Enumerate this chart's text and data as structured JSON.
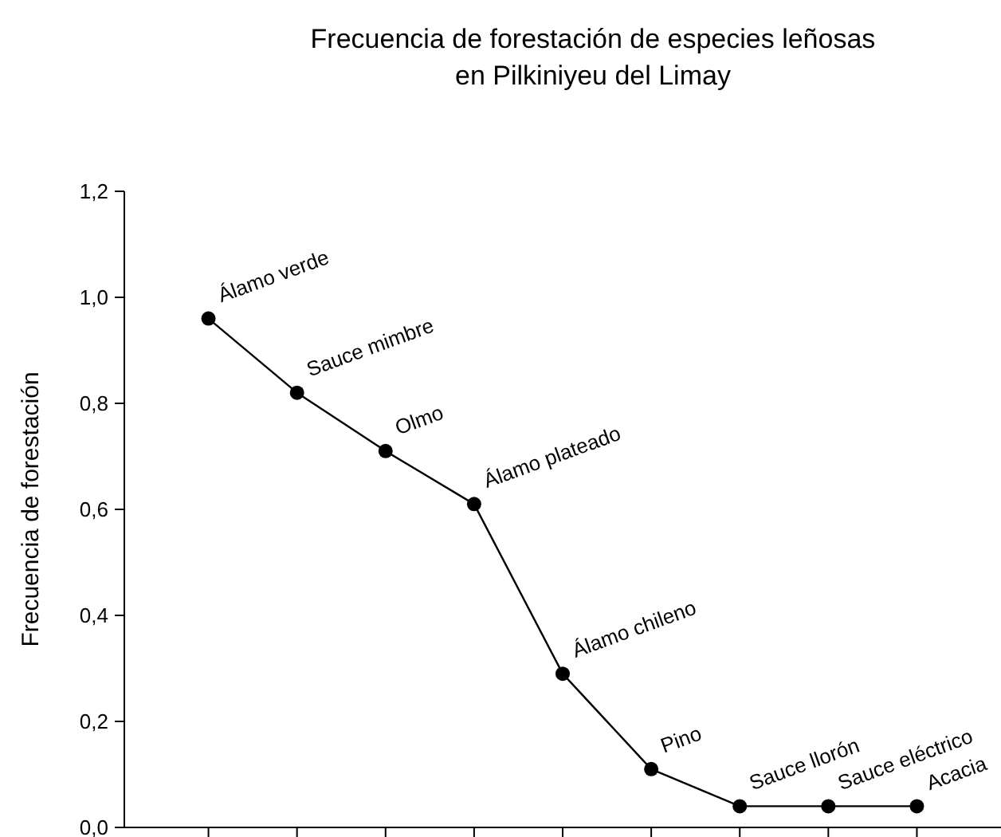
{
  "chart_data": {
    "type": "line",
    "title": "Frecuencia de forestación de especies leñosas\nen Pilkiniyeu del Limay",
    "ylabel": "Frecuencia de forestación",
    "categories": [
      null,
      null,
      null,
      null,
      null,
      null,
      null,
      null,
      null
    ],
    "series": [
      {
        "color": "#000000",
        "values": [
          0.96,
          0.82,
          0.71,
          0.61,
          0.29,
          0.11,
          0.04,
          0.04,
          0.04
        ]
      }
    ],
    "annotations": [
      "Álamo verde",
      "Sauce mimbre",
      "Olmo",
      "Álamo plateado",
      "Álamo chileno",
      "Pino",
      "Sauce llorón",
      "Sauce eléctrico",
      "Acacia"
    ],
    "ylim": [
      0,
      1.2
    ],
    "yticks": [
      {
        "value": 0,
        "label": "0,0"
      },
      {
        "value": 0.2,
        "label": "0,2"
      },
      {
        "value": 0.4,
        "label": "0,4"
      },
      {
        "value": 0.6,
        "label": "0,6"
      },
      {
        "value": 0.8,
        "label": "0,8"
      },
      {
        "value": 1,
        "label": "1,0"
      },
      {
        "value": 1.2,
        "label": "1,2"
      }
    ],
    "marker": "circle",
    "line_style": "solid"
  }
}
